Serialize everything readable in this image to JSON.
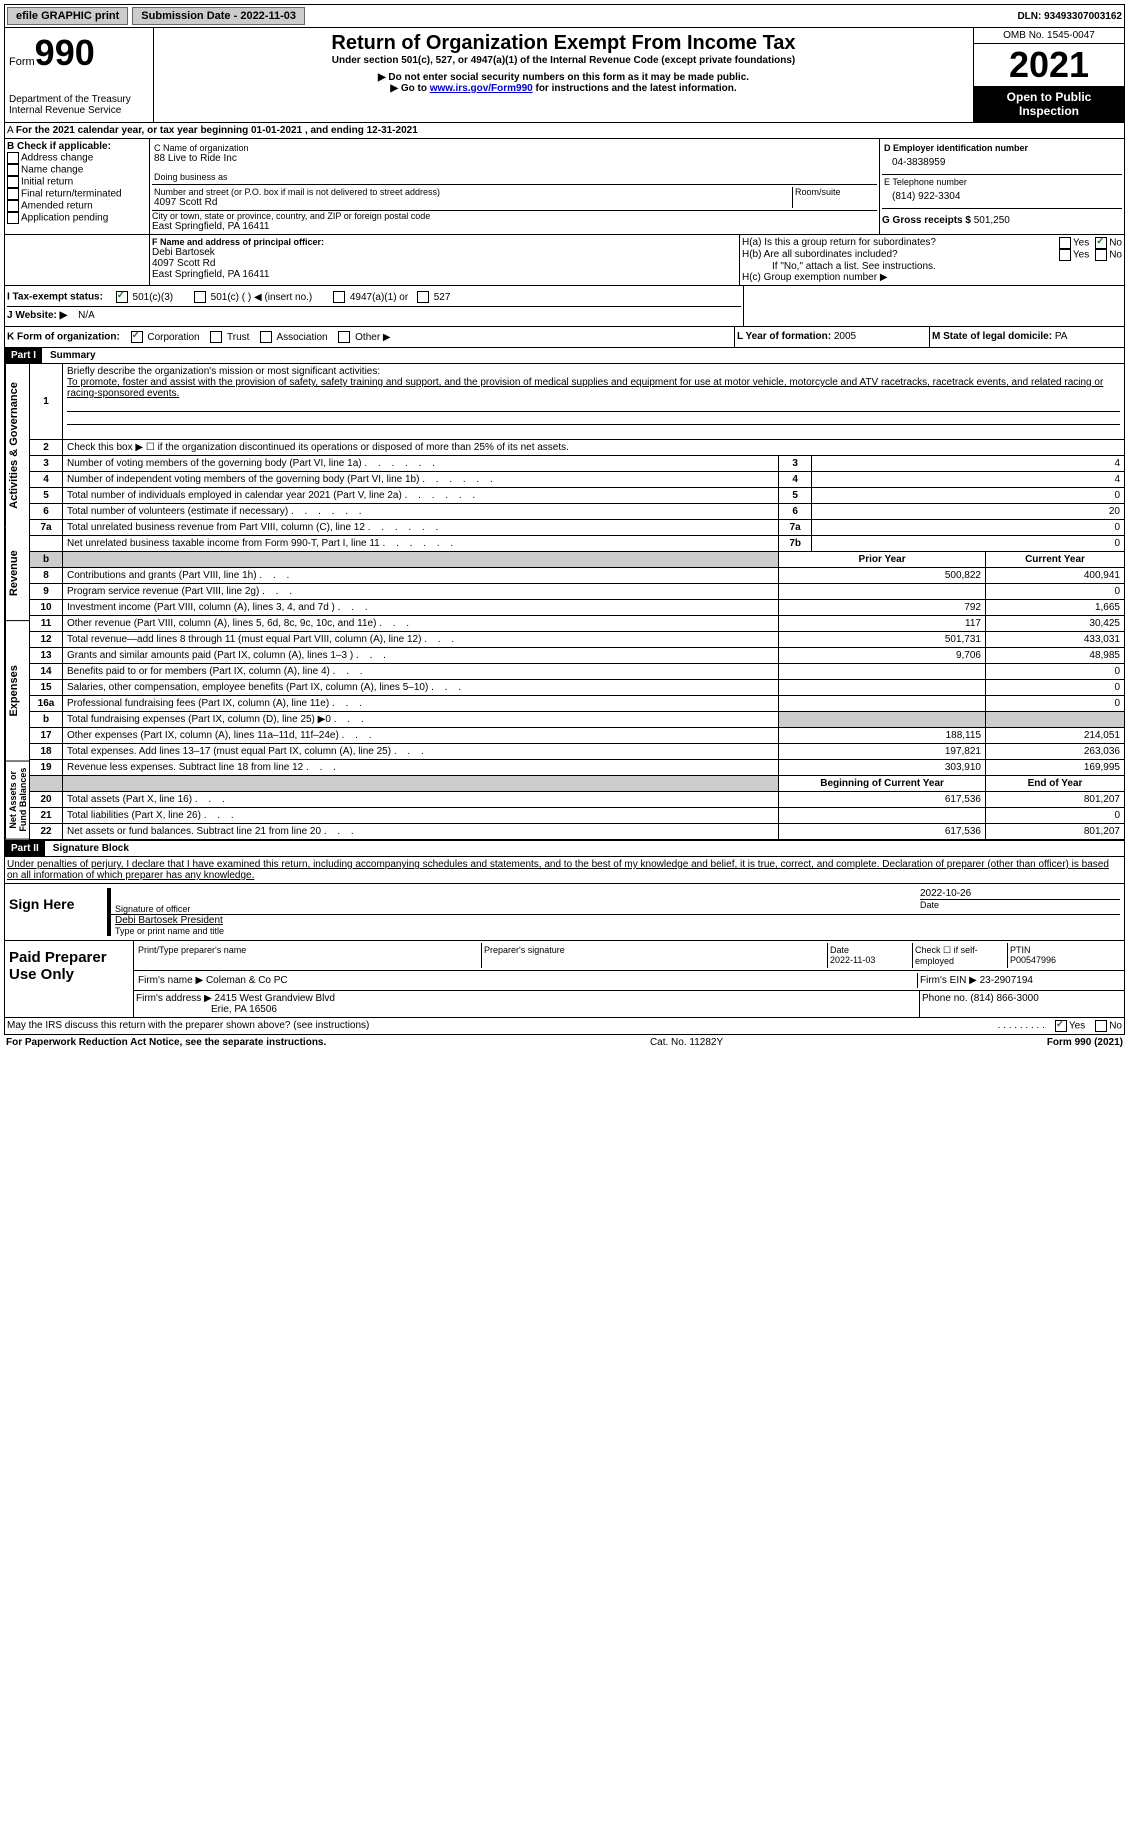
{
  "topbar": {
    "efile": "efile GRAPHIC print",
    "subdate_label": "Submission Date - ",
    "subdate": "2022-11-03",
    "dln_label": "DLN: ",
    "dln": "93493307003162"
  },
  "header": {
    "form_word": "Form",
    "form_num": "990",
    "dept": "Department of the Treasury",
    "irs": "Internal Revenue Service",
    "title": "Return of Organization Exempt From Income Tax",
    "subtitle": "Under section 501(c), 527, or 4947(a)(1) of the Internal Revenue Code (except private foundations)",
    "note1": "▶ Do not enter social security numbers on this form as it may be made public.",
    "note2_pre": "▶ Go to ",
    "note2_link": "www.irs.gov/Form990",
    "note2_post": " for instructions and the latest information.",
    "omb": "OMB No. 1545-0047",
    "year": "2021",
    "open": "Open to Public Inspection"
  },
  "A": {
    "text": "For the 2021 calendar year, or tax year beginning ",
    "begin": "01-01-2021",
    "mid": "  , and ending ",
    "end": "12-31-2021"
  },
  "B": {
    "label": "B Check if applicable:",
    "items": [
      "Address change",
      "Name change",
      "Initial return",
      "Final return/terminated",
      "Amended return",
      "Application pending"
    ]
  },
  "C": {
    "name_label": "C Name of organization",
    "name": "88 Live to Ride Inc",
    "dba_label": "Doing business as",
    "addr_label": "Number and street (or P.O. box if mail is not delivered to street address)",
    "room_label": "Room/suite",
    "addr": "4097 Scott Rd",
    "city_label": "City or town, state or province, country, and ZIP or foreign postal code",
    "city": "East Springfield, PA  16411"
  },
  "D": {
    "label": "D Employer identification number",
    "val": "04-3838959"
  },
  "E": {
    "label": "E Telephone number",
    "val": "(814) 922-3304"
  },
  "G": {
    "label": "G Gross receipts $ ",
    "val": "501,250"
  },
  "F": {
    "label": "F  Name and address of principal officer:",
    "name": "Debi Bartosek",
    "addr1": "4097 Scott Rd",
    "addr2": "East Springfield, PA  16411"
  },
  "H": {
    "a": "H(a)  Is this a group return for subordinates?",
    "b": "H(b)  Are all subordinates included?",
    "b_note": "If \"No,\" attach a list. See instructions.",
    "c": "H(c)  Group exemption number ▶",
    "yes": "Yes",
    "no": "No"
  },
  "I": {
    "label": "I  Tax-exempt status:",
    "opts": [
      "501(c)(3)",
      "501(c) (  ) ◀ (insert no.)",
      "4947(a)(1) or",
      "527"
    ]
  },
  "J": {
    "label": "J  Website: ▶",
    "val": "N/A"
  },
  "K": {
    "label": "K Form of organization:",
    "opts": [
      "Corporation",
      "Trust",
      "Association",
      "Other ▶"
    ]
  },
  "L": {
    "label": "L Year of formation: ",
    "val": "2005"
  },
  "M": {
    "label": "M State of legal domicile: ",
    "val": "PA"
  },
  "part1": {
    "label": "Part I",
    "title": "Summary",
    "q1_label": "Briefly describe the organization's mission or most significant activities:",
    "q1_text": "To promote, foster and assist with the provision of safety, safety training and support, and the provision of medical supplies and equipment for use at motor vehicle, motorcycle and ATV racetracks, racetrack events, and related racing or racing-sponsored events.",
    "q2": "Check this box ▶ ☐  if the organization discontinued its operations or disposed of more than 25% of its net assets.",
    "rows_ag": [
      {
        "n": "3",
        "t": "Number of voting members of the governing body (Part VI, line 1a)",
        "box": "3",
        "v": "4"
      },
      {
        "n": "4",
        "t": "Number of independent voting members of the governing body (Part VI, line 1b)",
        "box": "4",
        "v": "4"
      },
      {
        "n": "5",
        "t": "Total number of individuals employed in calendar year 2021 (Part V, line 2a)",
        "box": "5",
        "v": "0"
      },
      {
        "n": "6",
        "t": "Total number of volunteers (estimate if necessary)",
        "box": "6",
        "v": "20"
      },
      {
        "n": "7a",
        "t": "Total unrelated business revenue from Part VIII, column (C), line 12",
        "box": "7a",
        "v": "0"
      },
      {
        "n": "",
        "t": "Net unrelated business taxable income from Form 990-T, Part I, line 11",
        "box": "7b",
        "v": "0"
      }
    ],
    "prior_label": "Prior Year",
    "current_label": "Current Year",
    "rev_rows": [
      {
        "n": "8",
        "t": "Contributions and grants (Part VIII, line 1h)",
        "p": "500,822",
        "c": "400,941"
      },
      {
        "n": "9",
        "t": "Program service revenue (Part VIII, line 2g)",
        "p": "",
        "c": "0"
      },
      {
        "n": "10",
        "t": "Investment income (Part VIII, column (A), lines 3, 4, and 7d )",
        "p": "792",
        "c": "1,665"
      },
      {
        "n": "11",
        "t": "Other revenue (Part VIII, column (A), lines 5, 6d, 8c, 9c, 10c, and 11e)",
        "p": "117",
        "c": "30,425"
      },
      {
        "n": "12",
        "t": "Total revenue—add lines 8 through 11 (must equal Part VIII, column (A), line 12)",
        "p": "501,731",
        "c": "433,031"
      }
    ],
    "exp_rows": [
      {
        "n": "13",
        "t": "Grants and similar amounts paid (Part IX, column (A), lines 1–3 )",
        "p": "9,706",
        "c": "48,985"
      },
      {
        "n": "14",
        "t": "Benefits paid to or for members (Part IX, column (A), line 4)",
        "p": "",
        "c": "0"
      },
      {
        "n": "15",
        "t": "Salaries, other compensation, employee benefits (Part IX, column (A), lines 5–10)",
        "p": "",
        "c": "0"
      },
      {
        "n": "16a",
        "t": "Professional fundraising fees (Part IX, column (A), line 11e)",
        "p": "",
        "c": "0"
      },
      {
        "n": "b",
        "t": "Total fundraising expenses (Part IX, column (D), line 25) ▶0",
        "p": "SHADE",
        "c": "SHADE"
      },
      {
        "n": "17",
        "t": "Other expenses (Part IX, column (A), lines 11a–11d, 11f–24e)",
        "p": "188,115",
        "c": "214,051"
      },
      {
        "n": "18",
        "t": "Total expenses. Add lines 13–17 (must equal Part IX, column (A), line 25)",
        "p": "197,821",
        "c": "263,036"
      },
      {
        "n": "19",
        "t": "Revenue less expenses. Subtract line 18 from line 12",
        "p": "303,910",
        "c": "169,995"
      }
    ],
    "begin_label": "Beginning of Current Year",
    "end_label": "End of Year",
    "net_rows": [
      {
        "n": "20",
        "t": "Total assets (Part X, line 16)",
        "p": "617,536",
        "c": "801,207"
      },
      {
        "n": "21",
        "t": "Total liabilities (Part X, line 26)",
        "p": "",
        "c": "0"
      },
      {
        "n": "22",
        "t": "Net assets or fund balances. Subtract line 21 from line 20",
        "p": "617,536",
        "c": "801,207"
      }
    ],
    "vlabels": {
      "ag": "Activities & Governance",
      "rev": "Revenue",
      "exp": "Expenses",
      "net": "Net Assets or Fund Balances"
    }
  },
  "part2": {
    "label": "Part II",
    "title": "Signature Block",
    "decl": "Under penalties of perjury, I declare that I have examined this return, including accompanying schedules and statements, and to the best of my knowledge and belief, it is true, correct, and complete. Declaration of preparer (other than officer) is based on all information of which preparer has any knowledge.",
    "sign_here": "Sign Here",
    "sig_officer": "Signature of officer",
    "sig_date": "2022-10-26",
    "date_label": "Date",
    "officer_name": "Debi Bartosek  President",
    "type_name": "Type or print name and title",
    "paid": "Paid Preparer Use Only",
    "prep_name_label": "Print/Type preparer's name",
    "prep_sig_label": "Preparer's signature",
    "prep_date_label": "Date",
    "prep_date": "2022-11-03",
    "check_if": "Check ☐ if self-employed",
    "ptin_label": "PTIN",
    "ptin": "P00547996",
    "firm_name_label": "Firm's name    ▶ ",
    "firm_name": "Coleman & Co PC",
    "firm_ein_label": "Firm's EIN ▶ ",
    "firm_ein": "23-2907194",
    "firm_addr_label": "Firm's address ▶ ",
    "firm_addr1": "2415 West Grandview Blvd",
    "firm_addr2": "Erie, PA  16506",
    "phone_label": "Phone no. ",
    "phone": "(814) 866-3000",
    "discuss": "May the IRS discuss this return with the preparer shown above? (see instructions)"
  },
  "footer": {
    "left": "For Paperwork Reduction Act Notice, see the separate instructions.",
    "mid": "Cat. No. 11282Y",
    "right": "Form 990 (2021)"
  }
}
